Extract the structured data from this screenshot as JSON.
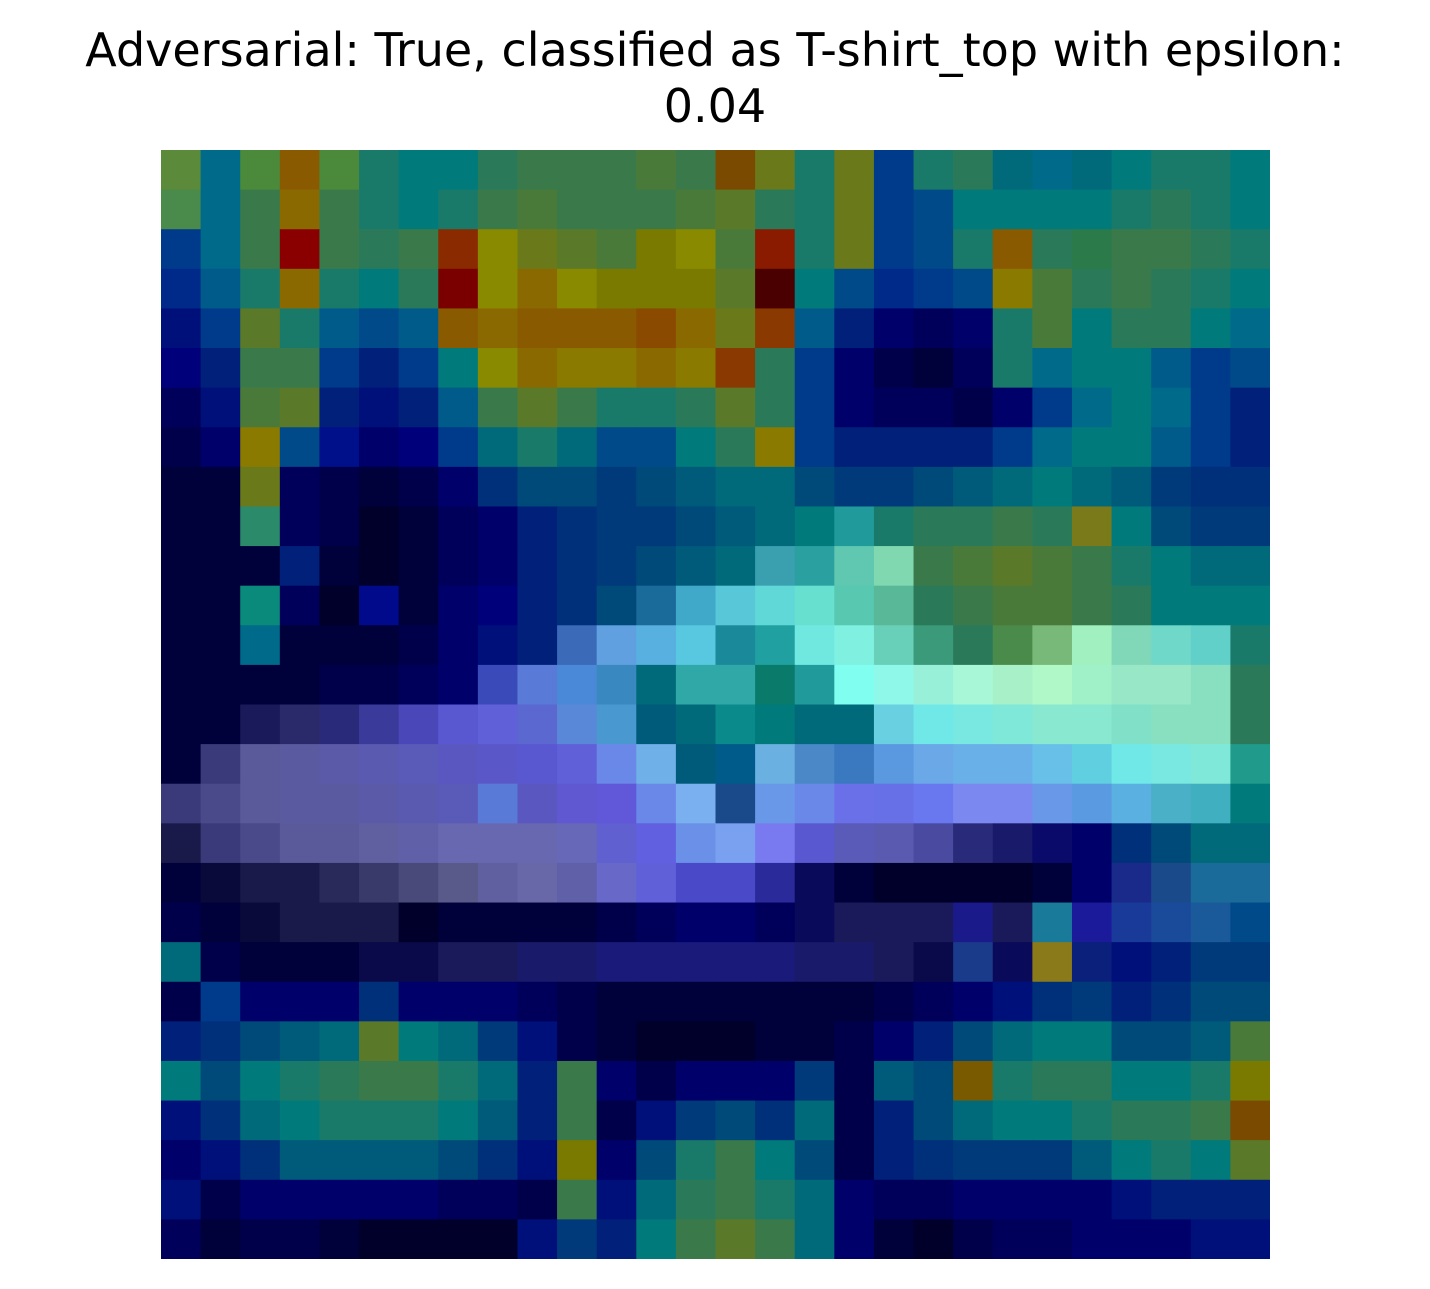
{
  "title_line1": "Adversarial: True, classified as T-shirt_top with epsilon:",
  "title_line2": "0.04",
  "chart_data": {
    "type": "heatmap",
    "title": "Adversarial: True, classified as T-shirt_top with epsilon: 0.04",
    "axes_visible": false,
    "grid": false,
    "rows": 28,
    "cols": 28,
    "colors": [
      [
        "#5a8a3a",
        "#006a8a",
        "#4a8a3a",
        "#8a5a00",
        "#4a8a3a",
        "#1a7a6a",
        "#007a7a",
        "#007a7a",
        "#2a7a5a",
        "#3a7a4a",
        "#3a7a4a",
        "#3a7a4a",
        "#4a7a3a",
        "#3a7a4a",
        "#7a4a00",
        "#6a7a1a",
        "#1a7a6a",
        "#6a7a1a",
        "#003a8a",
        "#1a7a6a",
        "#2a7a5a",
        "#006a7a",
        "#006a8a",
        "#006a7a",
        "#007a7a",
        "#1a7a6a",
        "#1a7a6a",
        "#007a7a"
      ],
      [
        "#4a8a4a",
        "#006a8a",
        "#3a7a4a",
        "#8a6a00",
        "#3a7a4a",
        "#1a7a6a",
        "#007a7a",
        "#1a7a6a",
        "#3a7a4a",
        "#4a7a3a",
        "#3a7a4a",
        "#3a7a4a",
        "#3a7a4a",
        "#4a7a3a",
        "#5a7a2a",
        "#2a7a5a",
        "#1a7a6a",
        "#6a7a1a",
        "#003a8a",
        "#004a8a",
        "#007a7a",
        "#007a7a",
        "#007a7a",
        "#007a7a",
        "#1a7a6a",
        "#2a7a5a",
        "#1a7a6a",
        "#007a7a"
      ],
      [
        "#003a8a",
        "#006a8a",
        "#3a7a4a",
        "#8a0000",
        "#3a7a4a",
        "#2a7a5a",
        "#3a7a4a",
        "#8a2a00",
        "#8a8a00",
        "#6a7a1a",
        "#5a7a2a",
        "#4a7a3a",
        "#7a7a00",
        "#8a8a00",
        "#4a7a3a",
        "#8a1a00",
        "#1a7a6a",
        "#6a7a1a",
        "#003a8a",
        "#004a8a",
        "#1a7a6a",
        "#8a5a00",
        "#2a7a5a",
        "#2a7a4a",
        "#3a7a4a",
        "#3a7a4a",
        "#2a7a5a",
        "#1a7a6a"
      ],
      [
        "#002a8a",
        "#005a8a",
        "#1a7a6a",
        "#8a6a00",
        "#1a7a6a",
        "#007a7a",
        "#2a7a5a",
        "#7a0000",
        "#8a8a00",
        "#8a6a00",
        "#8a8a00",
        "#7a7a00",
        "#7a7a00",
        "#7a7a00",
        "#5a7a2a",
        "#4a0000",
        "#007a7a",
        "#004a8a",
        "#002a8a",
        "#003a8a",
        "#004a8a",
        "#8a7a00",
        "#4a7a3a",
        "#2a7a5a",
        "#3a7a4a",
        "#2a7a5a",
        "#1a7a6a",
        "#007a7a"
      ],
      [
        "#00107a",
        "#003a8a",
        "#5a7a2a",
        "#1a7a6a",
        "#005a8a",
        "#004a8a",
        "#005a8a",
        "#8a5a00",
        "#8a6a00",
        "#8a5a00",
        "#8a5a00",
        "#8a5a00",
        "#8a4a00",
        "#8a6a00",
        "#6a7a1a",
        "#8a3a00",
        "#005a8a",
        "#00207a",
        "#00006a",
        "#00005a",
        "#00006a",
        "#1a7a6a",
        "#4a7a3a",
        "#007a7a",
        "#2a7a5a",
        "#2a7a5a",
        "#007a7a",
        "#006a8a"
      ],
      [
        "#00007a",
        "#00207a",
        "#3a7a4a",
        "#3a7a4a",
        "#003a8a",
        "#00207a",
        "#003a8a",
        "#007a7a",
        "#8a8a00",
        "#8a6a00",
        "#8a7a00",
        "#8a7a00",
        "#8a6a00",
        "#8a7a00",
        "#8a3a00",
        "#2a7a5a",
        "#003a8a",
        "#00006a",
        "#00004a",
        "#00003a",
        "#00005a",
        "#1a7a6a",
        "#006a8a",
        "#007a7a",
        "#007a7a",
        "#005a8a",
        "#003a8a",
        "#004a8a"
      ],
      [
        "#00005a",
        "#00107a",
        "#4a7a3a",
        "#5a7a2a",
        "#00207a",
        "#00107a",
        "#00207a",
        "#005a8a",
        "#3a7a4a",
        "#5a7a2a",
        "#3a7a4a",
        "#1a7a6a",
        "#1a7a6a",
        "#2a7a5a",
        "#5a7a2a",
        "#2a7a5a",
        "#003a8a",
        "#00006a",
        "#00005a",
        "#00005a",
        "#00004a",
        "#00006a",
        "#003a8a",
        "#006a8a",
        "#007a7a",
        "#006a8a",
        "#003a8a",
        "#00207a"
      ],
      [
        "#00004a",
        "#00006a",
        "#8a7a00",
        "#004a8a",
        "#00108a",
        "#00006a",
        "#00007a",
        "#003a8a",
        "#006a7a",
        "#1a7a6a",
        "#006a7a",
        "#004a8a",
        "#004a8a",
        "#007a7a",
        "#2a7a5a",
        "#8a7a00",
        "#003a8a",
        "#00207a",
        "#00207a",
        "#00207a",
        "#00207a",
        "#003a8a",
        "#006a8a",
        "#007a7a",
        "#007a7a",
        "#005a8a",
        "#003a8a",
        "#00207a"
      ],
      [
        "#00003a",
        "#00003a",
        "#6a7a1a",
        "#00005a",
        "#00004a",
        "#00003a",
        "#00004a",
        "#00006a",
        "#00307a",
        "#004a7a",
        "#004a7a",
        "#003a7a",
        "#004a7a",
        "#005a7a",
        "#006a7a",
        "#006a7a",
        "#004a7a",
        "#003a7a",
        "#003a7a",
        "#004a7a",
        "#005a7a",
        "#006a7a",
        "#007a7a",
        "#006a7a",
        "#005a7a",
        "#003a7a",
        "#00307a",
        "#00307a"
      ],
      [
        "#00003a",
        "#00003a",
        "#2a8a6a",
        "#00005a",
        "#00004a",
        "#00002a",
        "#00003a",
        "#00005a",
        "#00006a",
        "#00207a",
        "#00307a",
        "#003a7a",
        "#003a7a",
        "#004a7a",
        "#005a7a",
        "#006a7a",
        "#007a7a",
        "#209a9a",
        "#1a7a6a",
        "#2a7a5a",
        "#2a7a5a",
        "#3a7a4a",
        "#2a7a5a",
        "#7a7a1a",
        "#007a7a",
        "#004a7a",
        "#003a7a",
        "#003a7a"
      ],
      [
        "#00003a",
        "#00003a",
        "#00003a",
        "#00207a",
        "#00003a",
        "#00002a",
        "#00003a",
        "#00005a",
        "#00006a",
        "#00207a",
        "#00307a",
        "#003a7a",
        "#004a7a",
        "#005a7a",
        "#006a7a",
        "#3aa0b0",
        "#2aa0a0",
        "#60c8b0",
        "#80d8b0",
        "#3a7a4a",
        "#4a7a3a",
        "#5a7a2a",
        "#4a7a3a",
        "#3a7a4a",
        "#1a7a6a",
        "#007a7a",
        "#006a7a",
        "#006a7a"
      ],
      [
        "#00003a",
        "#00003a",
        "#0a8a7a",
        "#00005a",
        "#00002a",
        "#000a8a",
        "#00003a",
        "#00006a",
        "#00007a",
        "#00207a",
        "#00307a",
        "#004a7a",
        "#1a6a9a",
        "#40a8c8",
        "#58c8d8",
        "#60d8d8",
        "#68e0d0",
        "#58c8b0",
        "#58b898",
        "#2a7a5a",
        "#3a7a4a",
        "#4a7a3a",
        "#4a7a3a",
        "#3a7a4a",
        "#2a7a5a",
        "#007a7a",
        "#007a7a",
        "#007a7a"
      ],
      [
        "#00003a",
        "#00003a",
        "#006a8a",
        "#00003a",
        "#00003a",
        "#00003a",
        "#00004a",
        "#00006a",
        "#00107a",
        "#00207a",
        "#3a6ab8",
        "#60a0e0",
        "#58b0e0",
        "#58c8e0",
        "#1a8a9a",
        "#20a0a0",
        "#70e8e0",
        "#80f0e0",
        "#68d0b8",
        "#3a9a7a",
        "#2a7a5a",
        "#4a8a4a",
        "#78b878",
        "#a0f0c0",
        "#80d8b8",
        "#70d8c8",
        "#60d0c8",
        "#1a7a6a"
      ],
      [
        "#00003a",
        "#00003a",
        "#00003a",
        "#00003a",
        "#00004a",
        "#00004a",
        "#00005a",
        "#00006a",
        "#3a4ab8",
        "#5a7ad8",
        "#4a88d8",
        "#3a88c0",
        "#006a7a",
        "#30a8a8",
        "#30a8a8",
        "#0a7a6a",
        "#209a9a",
        "#80fff0",
        "#90f8e8",
        "#98f0d8",
        "#a8f8d8",
        "#a8f0c8",
        "#b0f8c8",
        "#a0f0c8",
        "#98e8c8",
        "#98e8c8",
        "#88e0c0",
        "#2a7a5a"
      ],
      [
        "#00003a",
        "#00003a",
        "#1a1a5a",
        "#2a2a6a",
        "#2a2a7a",
        "#3a3a9a",
        "#4a48b8",
        "#5a58d0",
        "#6060d8",
        "#5a68d0",
        "#5a88d8",
        "#4a98d0",
        "#005a7a",
        "#006a7a",
        "#0a8a8a",
        "#007a7a",
        "#006a7a",
        "#006a7a",
        "#68d0e0",
        "#70e8e8",
        "#78e8e0",
        "#80e8d8",
        "#88e8d0",
        "#88e8d0",
        "#80e0c8",
        "#88e0c0",
        "#88e0c0",
        "#2a7a5a"
      ],
      [
        "#00003a",
        "#3a3a7a",
        "#5a5a9a",
        "#5a5aa0",
        "#5a5aa8",
        "#5a5ab0",
        "#5a5ab8",
        "#5a58c0",
        "#5a58c8",
        "#5a58d0",
        "#6060d8",
        "#6a88e8",
        "#70b0e8",
        "#005a7a",
        "#005a8a",
        "#6ab0e0",
        "#4a88c8",
        "#3a78c0",
        "#5a98e0",
        "#6aa8e8",
        "#6ab0e8",
        "#6ab0e8",
        "#68c0e8",
        "#60d0e0",
        "#70e8e8",
        "#78e8e0",
        "#80e8d8",
        "#209a8a"
      ],
      [
        "#3a3a7a",
        "#4a4a8a",
        "#5a5a9a",
        "#5a5aa0",
        "#5a5aa0",
        "#5a5aa8",
        "#5a5ab0",
        "#5a5ab8",
        "#5a7ad8",
        "#5a58c0",
        "#6058d0",
        "#6058d8",
        "#6a88e8",
        "#7ab0f0",
        "#1a4a8a",
        "#6a98e8",
        "#6a88e8",
        "#6a70e8",
        "#6870e8",
        "#6a78f0",
        "#7a88f0",
        "#7a88f0",
        "#6a98e8",
        "#5a9ae0",
        "#5ab0e0",
        "#4ab0c8",
        "#40b0c0",
        "#007a7a"
      ],
      [
        "#1a1a4a",
        "#3a3a7a",
        "#4a4a8a",
        "#5a5a9a",
        "#5a5a9a",
        "#6060a0",
        "#6060a8",
        "#6868b0",
        "#6868b0",
        "#6868b0",
        "#6868b8",
        "#6060d0",
        "#6060e0",
        "#6a90e8",
        "#7aa0f0",
        "#7a7af0",
        "#5a58d0",
        "#5a5ab8",
        "#5a5ab0",
        "#4a4aa0",
        "#2a2a7a",
        "#1a1a6a",
        "#0a0a6a",
        "#00006a",
        "#00307a",
        "#004a7a",
        "#006a7a",
        "#006a7a"
      ],
      [
        "#00003a",
        "#0a0a3a",
        "#1a1a4a",
        "#1a1a4a",
        "#2a2a5a",
        "#3a3a6a",
        "#4a4a7a",
        "#5a5a8a",
        "#6060a0",
        "#6868a8",
        "#6060a8",
        "#6868c8",
        "#6060d8",
        "#4a4ac8",
        "#4a4ac8",
        "#2a2a9a",
        "#0a0a5a",
        "#00003a",
        "#00002a",
        "#00002a",
        "#00002a",
        "#00002a",
        "#00003a",
        "#00006a",
        "#1a2a8a",
        "#1a4a8a",
        "#1a6a9a",
        "#1a6a9a"
      ],
      [
        "#00004a",
        "#00003a",
        "#0a0a3a",
        "#1a1a4a",
        "#1a1a4a",
        "#1a1a4a",
        "#00002a",
        "#00003a",
        "#00003a",
        "#00003a",
        "#00003a",
        "#00004a",
        "#00005a",
        "#00006a",
        "#00006a",
        "#00005a",
        "#0a0a5a",
        "#1a1a5a",
        "#1a1a5a",
        "#1a1a5a",
        "#1a1a8a",
        "#1a1a5a",
        "#1a7a9a",
        "#1a1a9a",
        "#1a3a9a",
        "#1a4a9a",
        "#1a5a9a",
        "#004a8a"
      ],
      [
        "#006a7a",
        "#00004a",
        "#00003a",
        "#00003a",
        "#00003a",
        "#0a0a4a",
        "#0a0a4a",
        "#1a1a5a",
        "#1a1a5a",
        "#1a1a6a",
        "#1a1a6a",
        "#1a1a7a",
        "#1a1a7a",
        "#1a1a7a",
        "#1a1a7a",
        "#1a1a7a",
        "#1a1a6a",
        "#1a1a6a",
        "#1a1a5a",
        "#0a0a4a",
        "#1a3a8a",
        "#0a0a5a",
        "#8a7a1a",
        "#0a207a",
        "#00107a",
        "#00207a",
        "#003a7a",
        "#003a7a"
      ],
      [
        "#00004a",
        "#003a8a",
        "#00006a",
        "#00006a",
        "#00006a",
        "#00307a",
        "#00006a",
        "#00006a",
        "#00006a",
        "#00005a",
        "#00004a",
        "#00003a",
        "#00003a",
        "#00003a",
        "#00003a",
        "#00003a",
        "#00003a",
        "#00003a",
        "#00004a",
        "#00005a",
        "#00006a",
        "#00107a",
        "#00307a",
        "#003a7a",
        "#00207a",
        "#00307a",
        "#004a7a",
        "#004a7a"
      ],
      [
        "#00207a",
        "#00307a",
        "#004a7a",
        "#005a7a",
        "#006a7a",
        "#5a7a2a",
        "#007a7a",
        "#006a7a",
        "#003a7a",
        "#00107a",
        "#00004a",
        "#00003a",
        "#00002a",
        "#00002a",
        "#00002a",
        "#00003a",
        "#00003a",
        "#00004a",
        "#00006a",
        "#00207a",
        "#004a7a",
        "#006a7a",
        "#007a7a",
        "#007a7a",
        "#004a7a",
        "#004a7a",
        "#005a7a",
        "#4a7a3a"
      ],
      [
        "#007a7a",
        "#004a7a",
        "#007a7a",
        "#1a7a6a",
        "#2a7a5a",
        "#3a7a4a",
        "#3a7a4a",
        "#1a7a6a",
        "#006a7a",
        "#00207a",
        "#3a7a4a",
        "#00006a",
        "#00004a",
        "#00006a",
        "#00006a",
        "#00006a",
        "#003a7a",
        "#00004a",
        "#005a7a",
        "#004a7a",
        "#7a5a00",
        "#1a7a6a",
        "#2a7a5a",
        "#2a7a5a",
        "#007a7a",
        "#007a7a",
        "#1a7a6a",
        "#7a7a00"
      ],
      [
        "#00107a",
        "#00307a",
        "#006a7a",
        "#007a7a",
        "#1a7a6a",
        "#1a7a6a",
        "#1a7a6a",
        "#007a7a",
        "#005a7a",
        "#00207a",
        "#3a7a4a",
        "#00004a",
        "#00107a",
        "#003a7a",
        "#004a7a",
        "#00307a",
        "#006a7a",
        "#00004a",
        "#00207a",
        "#004a7a",
        "#006a7a",
        "#007a7a",
        "#007a7a",
        "#1a7a6a",
        "#2a7a5a",
        "#2a7a5a",
        "#3a7a4a",
        "#7a4a00"
      ],
      [
        "#00006a",
        "#00107a",
        "#00307a",
        "#005a7a",
        "#005a7a",
        "#005a7a",
        "#005a7a",
        "#004a7a",
        "#00307a",
        "#00107a",
        "#7a7a00",
        "#00006a",
        "#004a7a",
        "#1a7a6a",
        "#3a7a4a",
        "#007a7a",
        "#004a7a",
        "#00004a",
        "#00207a",
        "#00307a",
        "#003a7a",
        "#003a7a",
        "#003a7a",
        "#005a7a",
        "#007a7a",
        "#1a7a6a",
        "#007a7a",
        "#5a7a2a"
      ],
      [
        "#00107a",
        "#00004a",
        "#00006a",
        "#00006a",
        "#00006a",
        "#00006a",
        "#00006a",
        "#00005a",
        "#00005a",
        "#00004a",
        "#3a7a4a",
        "#00107a",
        "#006a7a",
        "#2a7a5a",
        "#3a7a4a",
        "#1a7a6a",
        "#006a7a",
        "#00006a",
        "#00005a",
        "#00005a",
        "#00006a",
        "#00006a",
        "#00006a",
        "#00006a",
        "#00107a",
        "#00207a",
        "#00207a",
        "#00207a"
      ],
      [
        "#00005a",
        "#00003a",
        "#00004a",
        "#00004a",
        "#00003a",
        "#00002a",
        "#00002a",
        "#00002a",
        "#00002a",
        "#00107a",
        "#003a7a",
        "#00207a",
        "#007a7a",
        "#3a7a4a",
        "#5a7a2a",
        "#3a7a4a",
        "#006a7a",
        "#00006a",
        "#00003a",
        "#00002a",
        "#00004a",
        "#00005a",
        "#00005a",
        "#00006a",
        "#00006a",
        "#00006a",
        "#00107a",
        "#00107a"
      ]
    ]
  }
}
